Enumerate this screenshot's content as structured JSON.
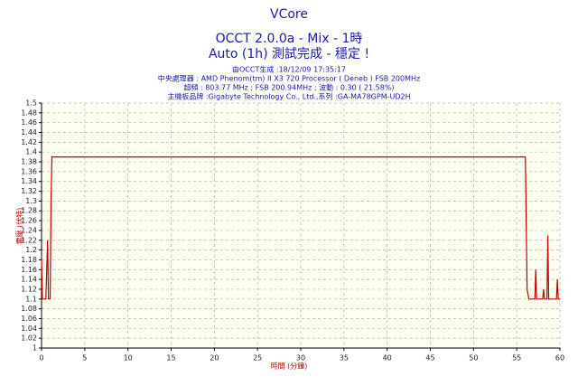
{
  "chart_data": {
    "type": "line",
    "title": "VCore",
    "subtitles": [
      "OCCT 2.0.0a - Mix - 1時",
      "Auto (1h) 測試完成 - 穩定 !"
    ],
    "info_lines": [
      "由OCCT生成 :18/12/09 17:35:17",
      "中央處理器 : AMD Phenom(tm) II X3 720 Processor ( Deneb ) FSB 200MHz",
      "超頻 : 803.77 MHz ; FSB 200.94MHz ; 波動 : 0.30 ( 21.58%)",
      "主機板品牌 :Gigabyte Technology Co., Ltd.,系列 :GA-MA78GPM-UD2H"
    ],
    "x_label": "時間 (分鐘)",
    "y_label": "電壓 (伏特)",
    "x": [
      0,
      0.1,
      0.5,
      0.7,
      0.8,
      1.0,
      1.1,
      1.2,
      56,
      56.2,
      56.4,
      57.1,
      57.2,
      57.3,
      58.0,
      58.1,
      58.2,
      58.5,
      58.6,
      58.7,
      59.6,
      59.7,
      59.8,
      60
    ],
    "values": [
      1.18,
      1.1,
      1.1,
      1.22,
      1.1,
      1.1,
      1.3,
      1.39,
      1.39,
      1.12,
      1.1,
      1.1,
      1.16,
      1.1,
      1.1,
      1.12,
      1.1,
      1.1,
      1.23,
      1.1,
      1.1,
      1.14,
      1.1,
      1.1
    ],
    "color": "#c00000",
    "xlim": [
      0,
      60
    ],
    "xticks": [
      0,
      5,
      10,
      15,
      20,
      25,
      30,
      35,
      40,
      45,
      50,
      55,
      60
    ],
    "ylim": [
      1,
      1.5
    ],
    "yticks": [
      1,
      1.02,
      1.04,
      1.06,
      1.08,
      1.1,
      1.12,
      1.14,
      1.16,
      1.18,
      1.2,
      1.22,
      1.24,
      1.26,
      1.28,
      1.3,
      1.32,
      1.34,
      1.36,
      1.38,
      1.4,
      1.42,
      1.44,
      1.46,
      1.48,
      1.5
    ],
    "grid": true
  }
}
